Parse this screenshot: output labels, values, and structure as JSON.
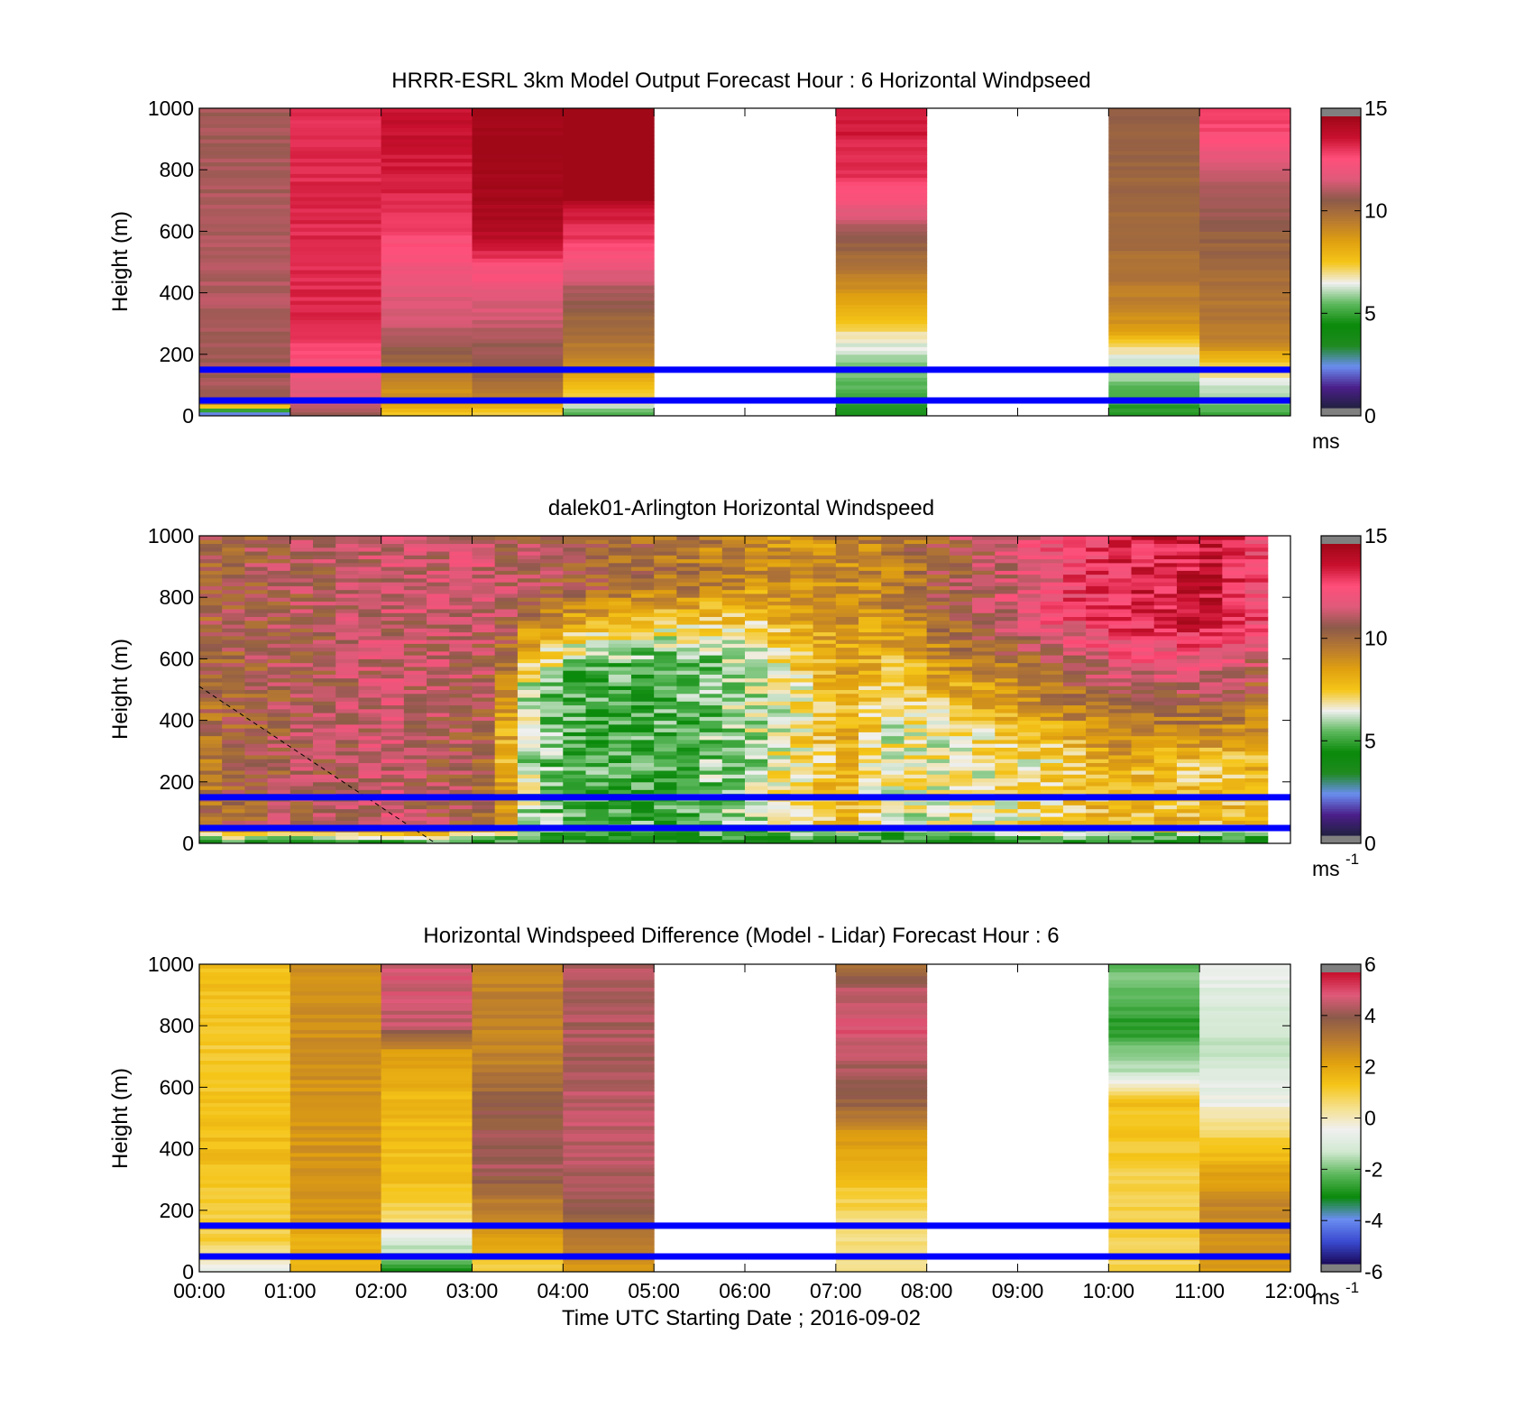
{
  "colors": {
    "windspeed_colormap": [
      "#202040",
      "#4b1f8a",
      "#6a8df0",
      "#1f8a1f",
      "#0a8a0a",
      "#5cb85c",
      "#f0f0f0",
      "#f5c518",
      "#e0a010",
      "#b87a30",
      "#8c5a4a",
      "#e05a7a",
      "#ff4f7a",
      "#c8102e",
      "#a00818"
    ],
    "difference_colormap": [
      "#1a0a5a",
      "#3a4ad0",
      "#6a8df0",
      "#0a8a0a",
      "#5cb85c",
      "#d0e8d0",
      "#f0f0f0",
      "#f5e08a",
      "#f5c518",
      "#e0a010",
      "#b87a30",
      "#8c5a4a",
      "#e05a7a",
      "#c8102e"
    ],
    "guide_line": "#0000ff",
    "nodata": "#808080"
  },
  "chart_data": [
    {
      "type": "heatmap",
      "title": "HRRR-ESRL 3km Model Output   Forecast Hour : 6 Horizontal Windpseed",
      "ylabel": "Height (m)",
      "xlabel": "",
      "ylim": [
        0,
        1000
      ],
      "yticks": [
        "0",
        "200",
        "400",
        "600",
        "800",
        "1000"
      ],
      "x_hours": [
        0,
        1,
        2,
        3,
        4,
        5,
        6,
        7,
        8,
        9,
        10,
        11,
        12
      ],
      "show_xtick_labels": false,
      "colorbar": {
        "min": 0,
        "max": 15,
        "ticks": [
          "0",
          "5",
          "10",
          "15"
        ],
        "unit_label": "ms",
        "unit_sup": ""
      },
      "guide_lines_m": [
        150,
        50
      ],
      "columns": [
        {
          "start_hour": 0,
          "end_hour": 1,
          "profile": [
            [
              0,
              1.0
            ],
            [
              40,
              9.5
            ],
            [
              60,
              11.0
            ],
            [
              120,
              11.0
            ],
            [
              400,
              11.2
            ],
            [
              1000,
              11.0
            ]
          ]
        },
        {
          "start_hour": 1,
          "end_hour": 2,
          "profile": [
            [
              0,
              10.5
            ],
            [
              40,
              11.5
            ],
            [
              150,
              12.5
            ],
            [
              300,
              13.5
            ],
            [
              1000,
              13.5
            ]
          ]
        },
        {
          "start_hour": 2,
          "end_hour": 3,
          "profile": [
            [
              0,
              7.5
            ],
            [
              40,
              8.5
            ],
            [
              150,
              10.0
            ],
            [
              300,
              11.5
            ],
            [
              500,
              12.5
            ],
            [
              700,
              13.5
            ],
            [
              900,
              14.0
            ],
            [
              1000,
              14.0
            ]
          ]
        },
        {
          "start_hour": 3,
          "end_hour": 4,
          "profile": [
            [
              0,
              7.0
            ],
            [
              50,
              9.0
            ],
            [
              150,
              10.5
            ],
            [
              400,
              12.0
            ],
            [
              500,
              13.0
            ],
            [
              600,
              14.5
            ],
            [
              750,
              15.0
            ],
            [
              1000,
              15.0
            ]
          ]
        },
        {
          "start_hour": 4,
          "end_hour": 5,
          "profile": [
            [
              0,
              5.0
            ],
            [
              50,
              7.0
            ],
            [
              150,
              9.0
            ],
            [
              400,
              11.0
            ],
            [
              550,
              13.0
            ],
            [
              680,
              14.0
            ],
            [
              720,
              16.0
            ],
            [
              1000,
              16.0
            ]
          ]
        },
        {
          "start_hour": 7,
          "end_hour": 8,
          "profile": [
            [
              0,
              4.5
            ],
            [
              200,
              6.0
            ],
            [
              350,
              8.0
            ],
            [
              450,
              9.5
            ],
            [
              600,
              11.0
            ],
            [
              700,
              12.5
            ],
            [
              800,
              13.5
            ],
            [
              1000,
              13.8
            ]
          ]
        },
        {
          "start_hour": 10,
          "end_hour": 11,
          "profile": [
            [
              0,
              4.5
            ],
            [
              200,
              6.5
            ],
            [
              300,
              9.0
            ],
            [
              500,
              10.0
            ],
            [
              1000,
              10.5
            ]
          ]
        },
        {
          "start_hour": 11,
          "end_hour": 12,
          "profile": [
            [
              0,
              5.0
            ],
            [
              150,
              7.0
            ],
            [
              250,
              9.5
            ],
            [
              600,
              10.5
            ],
            [
              800,
              11.5
            ],
            [
              900,
              12.8
            ],
            [
              1000,
              13.2
            ]
          ]
        }
      ]
    },
    {
      "type": "heatmap",
      "title": "dalek01-Arlington  Horizontal Windspeed",
      "ylabel": "Height (m)",
      "xlabel": "",
      "ylim": [
        0,
        1000
      ],
      "yticks": [
        "0",
        "200",
        "400",
        "600",
        "800",
        "1000"
      ],
      "x_hours": [
        0,
        1,
        2,
        3,
        4,
        5,
        6,
        7,
        8,
        9,
        10,
        11,
        12
      ],
      "show_xtick_labels": false,
      "colorbar": {
        "min": 0,
        "max": 15,
        "ticks": [
          "0",
          "5",
          "10",
          "15"
        ],
        "unit_label": "ms",
        "unit_sup": "-1"
      },
      "guide_lines_m": [
        150,
        50
      ],
      "time_step_hours": 0.25,
      "end_hour": 11.75,
      "surface_speed": 4.0,
      "control_hours": [
        0,
        1,
        2,
        3,
        3.5,
        4,
        5,
        6,
        7,
        7.5,
        8,
        9,
        10,
        11,
        11.75
      ],
      "mid_speed": [
        10.0,
        11.0,
        11.5,
        10.5,
        6.0,
        5.0,
        5.0,
        6.0,
        8.0,
        6.5,
        6.5,
        7.0,
        8.0,
        7.5,
        8.0
      ],
      "top_speed": [
        10.5,
        11.0,
        11.5,
        11.5,
        11.0,
        10.5,
        10.0,
        9.0,
        9.0,
        9.5,
        10.5,
        12.0,
        13.5,
        14.0,
        12.0
      ],
      "boundary_layer_m": [
        300,
        300,
        300,
        300,
        500,
        550,
        600,
        600,
        450,
        450,
        350,
        300,
        250,
        250,
        250
      ],
      "dashed_line_m": [
        [
          0.0,
          510
        ],
        [
          2.6,
          0
        ]
      ]
    },
    {
      "type": "heatmap",
      "title": "Horizontal Windspeed Difference (Model - Lidar) Forecast Hour : 6",
      "ylabel": "Height (m)",
      "xlabel": "Time UTC  Starting Date ; 2016-09-02",
      "ylim": [
        0,
        1000
      ],
      "yticks": [
        "0",
        "200",
        "400",
        "600",
        "800",
        "1000"
      ],
      "x_hours": [
        0,
        1,
        2,
        3,
        4,
        5,
        6,
        7,
        8,
        9,
        10,
        11,
        12
      ],
      "xtick_labels": [
        "00:00",
        "01:00",
        "02:00",
        "03:00",
        "04:00",
        "05:00",
        "06:00",
        "07:00",
        "08:00",
        "09:00",
        "10:00",
        "11:00",
        "12:00"
      ],
      "show_xtick_labels": true,
      "colorbar": {
        "min": -6,
        "max": 6,
        "ticks": [
          "-6",
          "-4",
          "-2",
          "0",
          "2",
          "4",
          "6"
        ],
        "unit_label": "ms",
        "unit_sup": "-1"
      },
      "guide_lines_m": [
        150,
        50
      ],
      "columns": [
        {
          "start_hour": 0,
          "end_hour": 1,
          "profile": [
            [
              0,
              -0.5
            ],
            [
              100,
              1.0
            ],
            [
              400,
              1.6
            ],
            [
              700,
              1.2
            ],
            [
              900,
              1.5
            ],
            [
              1000,
              1.5
            ]
          ]
        },
        {
          "start_hour": 1,
          "end_hour": 2,
          "profile": [
            [
              0,
              1.5
            ],
            [
              200,
              2.5
            ],
            [
              500,
              2.6
            ],
            [
              1000,
              2.8
            ]
          ]
        },
        {
          "start_hour": 2,
          "end_hour": 3,
          "profile": [
            [
              0,
              -3.0
            ],
            [
              100,
              -1.0
            ],
            [
              150,
              0.5
            ],
            [
              300,
              1.5
            ],
            [
              600,
              1.8
            ],
            [
              720,
              2.5
            ],
            [
              800,
              4.8
            ],
            [
              1000,
              5.0
            ]
          ]
        },
        {
          "start_hour": 3,
          "end_hour": 4,
          "profile": [
            [
              0,
              1.0
            ],
            [
              150,
              2.5
            ],
            [
              350,
              4.5
            ],
            [
              550,
              4.0
            ],
            [
              700,
              3.0
            ],
            [
              1000,
              3.0
            ]
          ]
        },
        {
          "start_hour": 4,
          "end_hour": 5,
          "profile": [
            [
              0,
              2.5
            ],
            [
              100,
              3.5
            ],
            [
              300,
              4.5
            ],
            [
              500,
              4.8
            ],
            [
              700,
              4.5
            ],
            [
              1000,
              4.5
            ]
          ]
        },
        {
          "start_hour": 7,
          "end_hour": 8,
          "profile": [
            [
              0,
              0.5
            ],
            [
              150,
              0.5
            ],
            [
              300,
              1.5
            ],
            [
              450,
              2.5
            ],
            [
              550,
              4.0
            ],
            [
              800,
              5.2
            ],
            [
              900,
              4.8
            ],
            [
              1000,
              3.5
            ]
          ]
        },
        {
          "start_hour": 10,
          "end_hour": 11,
          "profile": [
            [
              0,
              1.0
            ],
            [
              300,
              1.0
            ],
            [
              550,
              1.5
            ],
            [
              650,
              -1.5
            ],
            [
              800,
              -3.0
            ],
            [
              950,
              -2.0
            ],
            [
              1000,
              -2.5
            ]
          ]
        },
        {
          "start_hour": 11,
          "end_hour": 12,
          "profile": [
            [
              0,
              2.5
            ],
            [
              200,
              3.0
            ],
            [
              400,
              1.5
            ],
            [
              550,
              -0.5
            ],
            [
              700,
              -1.5
            ],
            [
              900,
              -1.0
            ],
            [
              1000,
              -0.5
            ]
          ]
        }
      ]
    }
  ]
}
